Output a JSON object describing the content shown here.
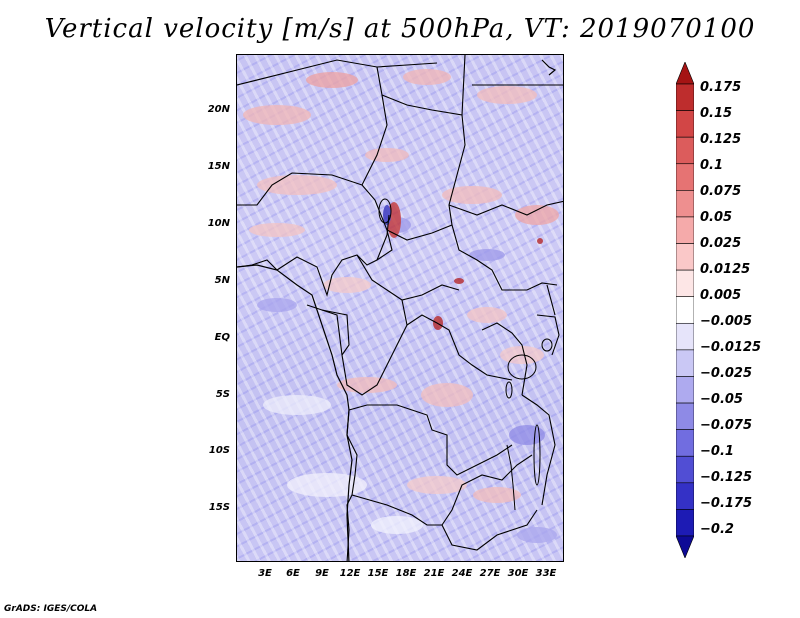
{
  "title": "Vertical velocity [m/s] at 500hPa, VT: 2019070100",
  "credit": "GrADS: IGES/COLA",
  "map": {
    "lat_ticks": [
      "20N",
      "15N",
      "10N",
      "5N",
      "EQ",
      "5S",
      "10S",
      "15S"
    ],
    "lon_ticks": [
      "3E",
      "6E",
      "9E",
      "12E",
      "15E",
      "18E",
      "21E",
      "24E",
      "27E",
      "30E",
      "33E"
    ]
  },
  "colorbar": {
    "labels": [
      "0.175",
      "0.15",
      "0.125",
      "0.1",
      "0.075",
      "0.05",
      "0.025",
      "0.0125",
      "0.005",
      "−0.005",
      "−0.0125",
      "−0.025",
      "−0.05",
      "−0.075",
      "−0.1",
      "−0.125",
      "−0.175",
      "−0.2"
    ],
    "colors": [
      "#a51414",
      "#be2d2d",
      "#d24646",
      "#dc5c5c",
      "#e67373",
      "#ee8f8f",
      "#f5aaaa",
      "#fac8c8",
      "#fde6e6",
      "#ffffff",
      "#e6e4fa",
      "#cac8f5",
      "#aeaaef",
      "#8e8ae6",
      "#716de0",
      "#514ed4",
      "#3431c6",
      "#1d1bb4",
      "#0e0a96"
    ]
  }
}
